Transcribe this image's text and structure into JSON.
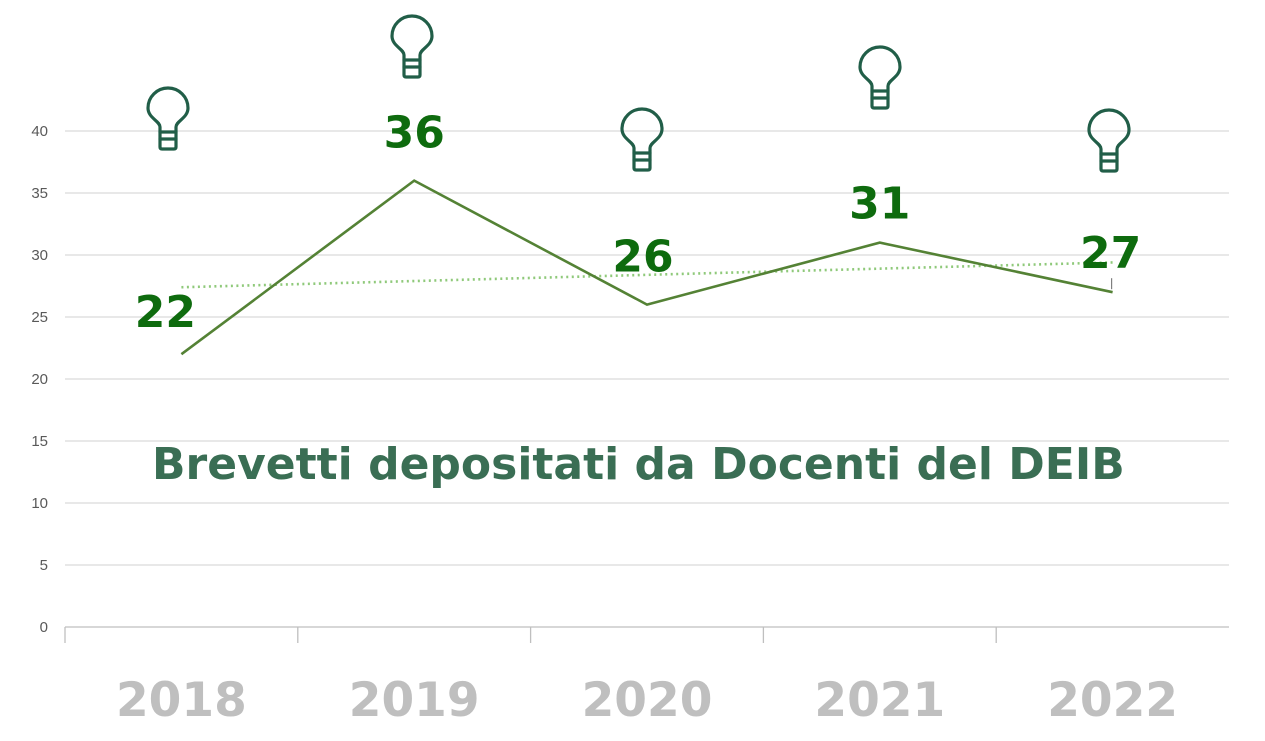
{
  "chart_data": {
    "type": "line",
    "title": "Brevetti depositati da Docenti del DEIB",
    "categories": [
      "2018",
      "2019",
      "2020",
      "2021",
      "2022"
    ],
    "values": [
      22,
      36,
      26,
      31,
      27
    ],
    "data_labels": [
      "22",
      "36",
      "26",
      "31",
      "27"
    ],
    "ylim": [
      0,
      40
    ],
    "yticks": [
      "0",
      "5",
      "10",
      "15",
      "20",
      "25",
      "30",
      "35",
      "40"
    ],
    "trendline": {
      "type": "linear",
      "style": "dotted"
    },
    "grid": true,
    "legend": "none",
    "colors": {
      "line": "#548235",
      "trend": "#8fc97a",
      "data_label": "#0e6b0e",
      "title": "#3a6e54",
      "x_tick": "#bfbfbf",
      "y_tick": "#595959",
      "grid": "#d9d9d9",
      "icon": "#215e48"
    },
    "marker_icon": "lightbulb-icon"
  }
}
